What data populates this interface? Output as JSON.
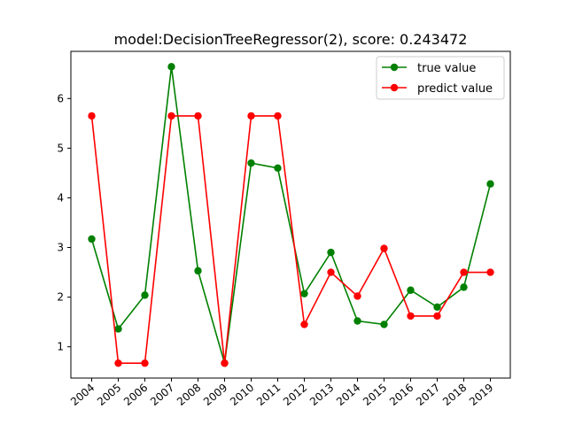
{
  "chart_data": {
    "type": "line",
    "title": "model:DecisionTreeRegressor(2), score: 0.243472",
    "xlabel": "",
    "ylabel": "",
    "categories": [
      "2004",
      "2005",
      "2006",
      "2007",
      "2008",
      "2009",
      "2010",
      "2011",
      "2012",
      "2013",
      "2014",
      "2015",
      "2016",
      "2017",
      "2018",
      "2019"
    ],
    "y_ticks": [
      1,
      2,
      3,
      4,
      5,
      6
    ],
    "ylim": [
      0.37,
      6.95
    ],
    "legend_position": "upper right",
    "grid": false,
    "series": [
      {
        "name": "true value",
        "color": "#008000",
        "values": [
          3.17,
          1.36,
          2.04,
          6.64,
          2.53,
          0.67,
          4.7,
          4.6,
          2.07,
          2.9,
          1.52,
          1.45,
          2.14,
          1.8,
          2.2,
          4.28
        ]
      },
      {
        "name": "predict value",
        "color": "#ff0000",
        "values": [
          5.65,
          0.67,
          0.67,
          5.65,
          5.65,
          0.67,
          5.65,
          5.65,
          1.45,
          2.5,
          2.02,
          2.98,
          1.62,
          1.62,
          2.5,
          2.5
        ]
      }
    ]
  }
}
